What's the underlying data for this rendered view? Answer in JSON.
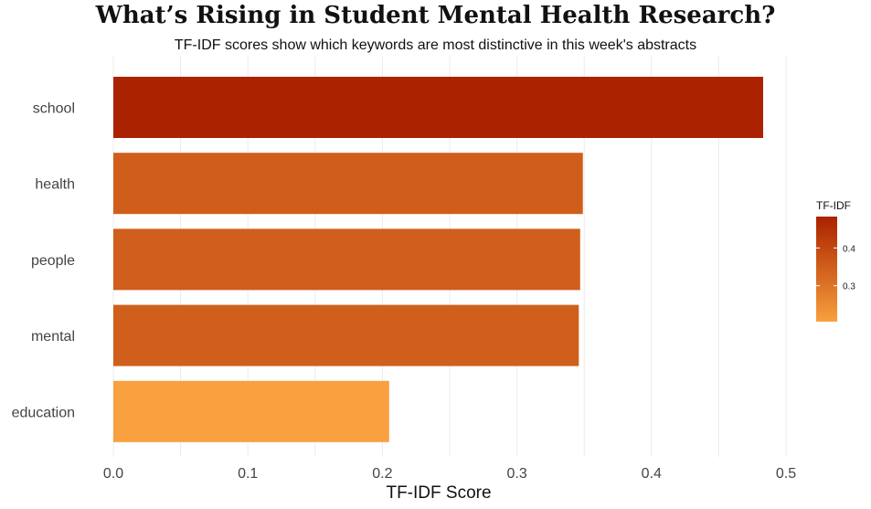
{
  "title": "What’s Rising in Student Mental Health Research?",
  "subtitle": "TF-IDF scores show which keywords are most distinctive in this week's abstracts",
  "chart_data": {
    "type": "bar",
    "orientation": "horizontal",
    "categories": [
      "school",
      "health",
      "people",
      "mental",
      "education"
    ],
    "values": [
      0.483,
      0.349,
      0.347,
      0.346,
      0.205
    ],
    "xlabel": "TF-IDF Score",
    "ylabel": "",
    "xlim": [
      0,
      0.5
    ],
    "x_ticks": [
      "0.0",
      "0.1",
      "0.2",
      "0.3",
      "0.4",
      "0.5"
    ],
    "grid": true,
    "legend": {
      "title": "TF-IDF",
      "placement": "right",
      "ticks": [
        "0.3",
        "0.4"
      ],
      "tick_values": [
        0.3,
        0.4
      ],
      "range": [
        0.205,
        0.483
      ],
      "low_color": "#F9A03F",
      "high_color": "#AA2200"
    }
  }
}
